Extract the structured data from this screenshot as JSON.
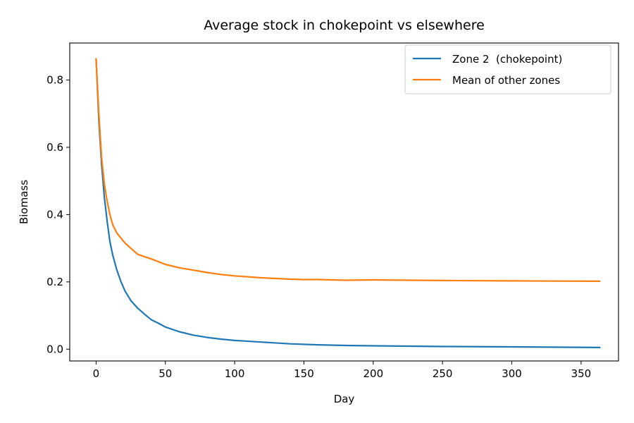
{
  "chart_data": {
    "type": "line",
    "title": "Average stock in chokepoint vs elsewhere",
    "xlabel": "Day",
    "ylabel": "Biomass",
    "xlim": [
      -19,
      377
    ],
    "ylim": [
      -0.035,
      0.91
    ],
    "xticks": [
      0,
      50,
      100,
      150,
      200,
      250,
      300,
      350
    ],
    "yticks": [
      0.0,
      0.2,
      0.4,
      0.6,
      0.8
    ],
    "xtick_labels": [
      "0",
      "50",
      "100",
      "150",
      "200",
      "250",
      "300",
      "350"
    ],
    "ytick_labels": [
      "0.0",
      "0.2",
      "0.4",
      "0.6",
      "0.8"
    ],
    "grid": false,
    "legend_position": "top-right",
    "series": [
      {
        "name": "Zone 2  (chokepoint)",
        "color": "#1f77b4",
        "x": [
          0,
          2,
          4,
          6,
          8,
          10,
          12,
          15,
          18,
          21,
          25,
          30,
          35,
          40,
          45,
          50,
          60,
          70,
          80,
          90,
          100,
          120,
          140,
          160,
          180,
          200,
          250,
          300,
          364
        ],
        "y": [
          0.865,
          0.68,
          0.55,
          0.45,
          0.38,
          0.32,
          0.28,
          0.235,
          0.2,
          0.172,
          0.145,
          0.122,
          0.104,
          0.087,
          0.077,
          0.066,
          0.052,
          0.042,
          0.035,
          0.03,
          0.026,
          0.021,
          0.016,
          0.013,
          0.011,
          0.01,
          0.008,
          0.007,
          0.005
        ]
      },
      {
        "name": "Mean of other zones",
        "color": "#ff7f0e",
        "x": [
          0,
          2,
          4,
          6,
          8,
          10,
          12,
          15,
          18,
          21,
          25,
          30,
          35,
          40,
          45,
          50,
          60,
          70,
          80,
          90,
          100,
          120,
          140,
          150,
          160,
          180,
          200,
          250,
          300,
          364
        ],
        "y": [
          0.865,
          0.7,
          0.57,
          0.49,
          0.44,
          0.4,
          0.37,
          0.345,
          0.33,
          0.315,
          0.3,
          0.282,
          0.275,
          0.268,
          0.26,
          0.252,
          0.242,
          0.235,
          0.228,
          0.222,
          0.218,
          0.212,
          0.208,
          0.207,
          0.207,
          0.205,
          0.206,
          0.204,
          0.203,
          0.202
        ]
      }
    ]
  }
}
